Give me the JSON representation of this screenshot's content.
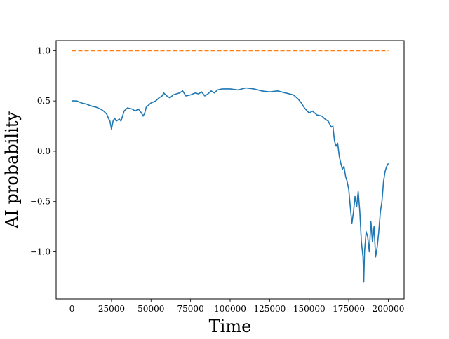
{
  "chart_data": {
    "type": "line",
    "title": "",
    "xlabel": "Time",
    "ylabel": "AI probability",
    "xlim": [
      -10000,
      210000
    ],
    "ylim": [
      -1.47,
      1.1
    ],
    "grid": false,
    "legend": "none",
    "x_ticks": [
      0,
      25000,
      50000,
      75000,
      100000,
      125000,
      150000,
      175000,
      200000
    ],
    "x_tick_labels": [
      "0",
      "25000",
      "50000",
      "75000",
      "100000",
      "125000",
      "150000",
      "175000",
      "200000"
    ],
    "y_ticks": [
      1.0,
      0.5,
      0.0,
      -0.5,
      -1.0
    ],
    "y_tick_labels": [
      "1.0",
      "0.5",
      "0.0",
      "−0.5",
      "−1.0"
    ],
    "series": [
      {
        "style": "solid",
        "color": "#1f77b4",
        "x": [
          0,
          3000,
          6000,
          9000,
          12000,
          15000,
          18000,
          20000,
          22000,
          23000,
          24000,
          25000,
          26000,
          27000,
          28000,
          30000,
          31000,
          32000,
          33000,
          35000,
          38000,
          40000,
          42000,
          44000,
          45000,
          46000,
          47000,
          50000,
          53000,
          55000,
          57000,
          58000,
          60000,
          62000,
          64000,
          66000,
          68000,
          70000,
          72000,
          75000,
          78000,
          80000,
          82000,
          84000,
          86000,
          88000,
          90000,
          92000,
          95000,
          100000,
          105000,
          110000,
          115000,
          120000,
          125000,
          130000,
          135000,
          140000,
          143000,
          145000,
          147000,
          150000,
          152000,
          155000,
          158000,
          160000,
          162000,
          163000,
          164000,
          165000,
          166000,
          167000,
          168000,
          169000,
          170000,
          171000,
          172000,
          173000,
          174000,
          175000,
          176000,
          177000,
          178000,
          179000,
          180000,
          181000,
          182000,
          183000,
          184000,
          184500,
          185000,
          186000,
          187000,
          188000,
          189000,
          190000,
          191000,
          192000,
          193000,
          194000,
          195000,
          196000,
          197000,
          198000,
          199000,
          200000
        ],
        "y": [
          0.5,
          0.5,
          0.48,
          0.47,
          0.45,
          0.44,
          0.42,
          0.4,
          0.37,
          0.33,
          0.3,
          0.22,
          0.3,
          0.33,
          0.3,
          0.32,
          0.3,
          0.35,
          0.4,
          0.43,
          0.42,
          0.4,
          0.42,
          0.38,
          0.35,
          0.38,
          0.44,
          0.48,
          0.5,
          0.53,
          0.55,
          0.58,
          0.55,
          0.53,
          0.56,
          0.57,
          0.58,
          0.6,
          0.55,
          0.56,
          0.58,
          0.57,
          0.59,
          0.55,
          0.57,
          0.6,
          0.58,
          0.61,
          0.62,
          0.62,
          0.61,
          0.63,
          0.62,
          0.6,
          0.59,
          0.6,
          0.58,
          0.56,
          0.52,
          0.48,
          0.43,
          0.38,
          0.4,
          0.36,
          0.35,
          0.32,
          0.3,
          0.27,
          0.24,
          0.25,
          0.1,
          0.05,
          0.08,
          -0.05,
          -0.12,
          -0.18,
          -0.15,
          -0.25,
          -0.3,
          -0.38,
          -0.55,
          -0.72,
          -0.6,
          -0.45,
          -0.55,
          -0.4,
          -0.6,
          -0.9,
          -1.05,
          -1.3,
          -1.0,
          -0.8,
          -0.85,
          -1.0,
          -0.7,
          -0.9,
          -0.75,
          -1.05,
          -0.95,
          -0.8,
          -0.6,
          -0.5,
          -0.3,
          -0.2,
          -0.15,
          -0.12
        ]
      },
      {
        "style": "dashed",
        "color": "#ff7f0e",
        "x": [
          0,
          200000
        ],
        "y": [
          1.0,
          1.0
        ]
      }
    ]
  }
}
